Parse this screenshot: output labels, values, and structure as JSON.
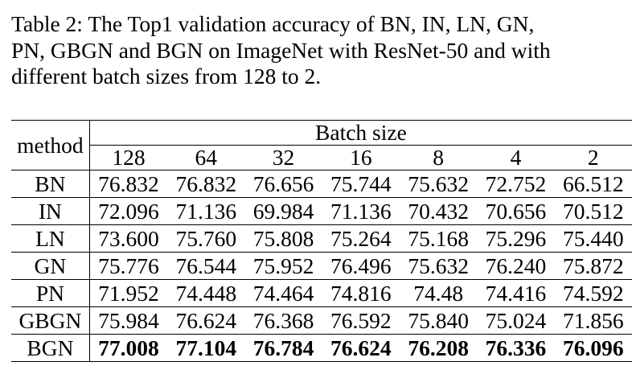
{
  "caption_lines": [
    "Table 2: The Top1 validation accuracy of BN, IN, LN, GN,",
    "PN, GBGN and BGN on ImageNet with ResNet-50 and with",
    "different batch sizes from 128 to 2."
  ],
  "table": {
    "header": {
      "method": "method",
      "group_label": "Batch size",
      "batch_sizes": [
        "128",
        "64",
        "32",
        "16",
        "8",
        "4",
        "2"
      ]
    },
    "rows": [
      {
        "method": "BN",
        "values": [
          "76.832",
          "76.832",
          "76.656",
          "75.744",
          "75.632",
          "72.752",
          "66.512"
        ]
      },
      {
        "method": "IN",
        "values": [
          "72.096",
          "71.136",
          "69.984",
          "71.136",
          "70.432",
          "70.656",
          "70.512"
        ]
      },
      {
        "method": "LN",
        "values": [
          "73.600",
          "75.760",
          "75.808",
          "75.264",
          "75.168",
          "75.296",
          "75.440"
        ]
      },
      {
        "method": "GN",
        "values": [
          "75.776",
          "76.544",
          "75.952",
          "76.496",
          "75.632",
          "76.240",
          "75.872"
        ]
      },
      {
        "method": "PN",
        "values": [
          "71.952",
          "74.448",
          "74.464",
          "74.816",
          "74.48",
          "74.416",
          "74.592"
        ]
      },
      {
        "method": "GBGN",
        "values": [
          "75.984",
          "76.624",
          "76.368",
          "76.592",
          "75.840",
          "75.024",
          "71.856"
        ]
      },
      {
        "method": "BGN",
        "values": [
          "77.008",
          "77.104",
          "76.784",
          "76.624",
          "76.208",
          "76.336",
          "76.096"
        ],
        "bold": true
      }
    ]
  }
}
